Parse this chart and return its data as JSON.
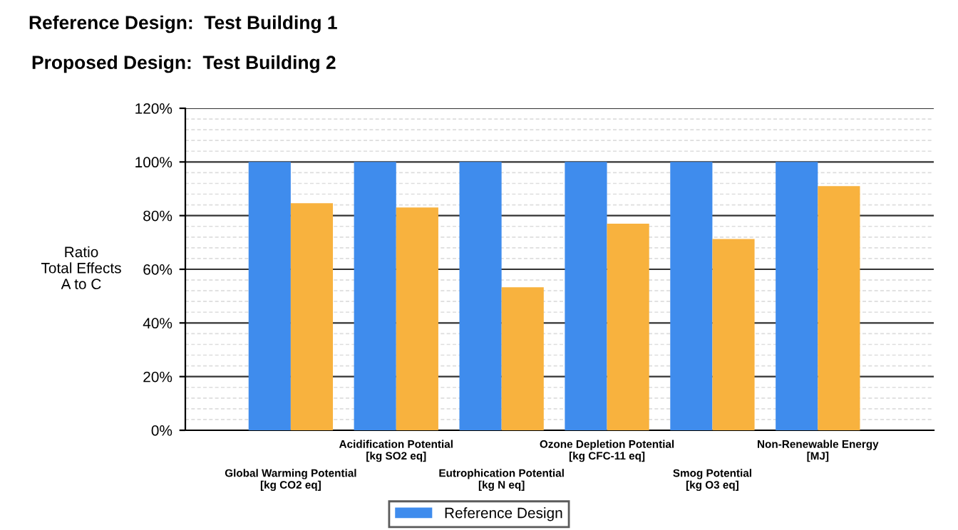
{
  "chart_data": {
    "type": "bar",
    "title": "Reference Design:  Test Building 1",
    "subtitle": "Proposed Design:  Test Building 2",
    "ylabel": "Ratio\nTotal Effects\nA to C",
    "categories": [
      "Global Warming Potential\n[kg CO2 eq]",
      "Acidification Potential\n[kg SO2 eq]",
      "Eutrophication Potential\n[kg N eq]",
      "Ozone Depletion Potential\n[kg CFC-11 eq]",
      "Smog Potential\n[kg O3 eq]",
      "Non-Renewable Energy\n[MJ]"
    ],
    "series": [
      {
        "name": "Reference Design",
        "color": "#3f8ced",
        "values": [
          100,
          100,
          100,
          100,
          100,
          100
        ]
      },
      {
        "color": "#f8b23e",
        "values": [
          84.6,
          83,
          53.3,
          77,
          71.3,
          91
        ]
      }
    ],
    "ylim": [
      0,
      120
    ],
    "yticks": [
      {
        "value": 0,
        "label": "0%"
      },
      {
        "value": 20,
        "label": "20%"
      },
      {
        "value": 40,
        "label": "40%"
      },
      {
        "value": 60,
        "label": "60%"
      },
      {
        "value": 80,
        "label": "80%"
      },
      {
        "value": 100,
        "label": "100%"
      },
      {
        "value": 120,
        "label": "120%"
      }
    ],
    "grid": "y",
    "legend": "bottom"
  }
}
